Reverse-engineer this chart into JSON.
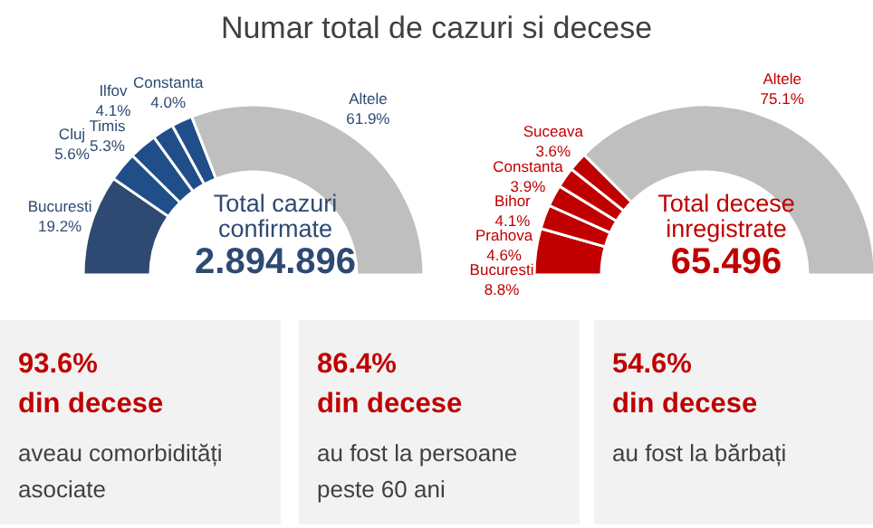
{
  "chart_data": [
    {
      "type": "donut",
      "title": "Numar total de cazuri si decese",
      "categories": [
        "Bucuresti",
        "Cluj",
        "Timis",
        "Ilfov",
        "Constanta",
        "Altele"
      ],
      "values": [
        19.2,
        5.6,
        5.3,
        4.1,
        4.0,
        61.9
      ],
      "value_labels": [
        "19.2%",
        "5.6%",
        "5.3%",
        "4.1%",
        "4.0%",
        "61.9%"
      ],
      "colors": [
        "#2e4a72",
        "#1f4e89",
        "#1f4e89",
        "#1f4e89",
        "#1f4e89",
        "#bfbfbf"
      ],
      "annotations": [
        "Total cazuri confirmate",
        "2.894.896"
      ]
    },
    {
      "type": "donut",
      "categories": [
        "Bucuresti",
        "Prahova",
        "Bihor",
        "Constanta",
        "Suceava",
        "Altele"
      ],
      "values": [
        8.8,
        4.6,
        4.1,
        3.9,
        3.6,
        75.1
      ],
      "value_labels": [
        "8.8%",
        "4.6%",
        "4.1%",
        "3.9%",
        "3.6%",
        "75.1%"
      ],
      "colors": [
        "#c00000",
        "#c00000",
        "#c00000",
        "#c00000",
        "#c00000",
        "#bfbfbf"
      ],
      "annotations": [
        "Total decese inregistrate",
        "65.496"
      ]
    },
    {
      "type": "other",
      "title": "93.6%",
      "subtitle": "din decese",
      "annotations": [
        "aveau comorbidități asociate"
      ]
    },
    {
      "type": "other",
      "title": "86.4%",
      "subtitle": "din decese",
      "annotations": [
        "au fost la persoane peste 60 ani"
      ]
    },
    {
      "type": "other",
      "title": "54.6%",
      "subtitle": "din decese",
      "annotations": [
        "au fost la bărbați"
      ]
    }
  ]
}
